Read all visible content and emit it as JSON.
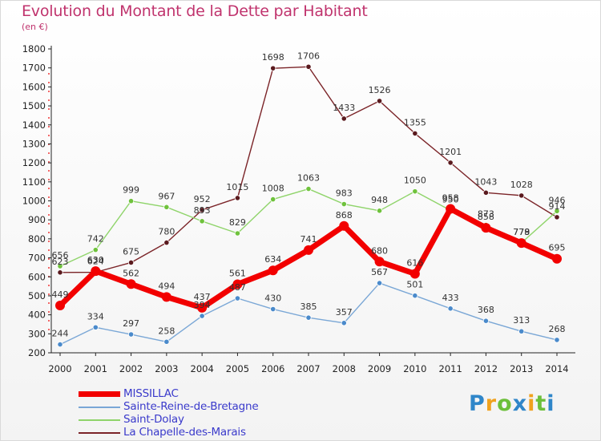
{
  "title": "Evolution du Montant de la Dette par Habitant",
  "subtitle": "(en €)",
  "brand": "Proxiti",
  "colors": {
    "title": "#c0336d",
    "legend_text": "#3a3acb"
  },
  "chart_data": {
    "type": "line",
    "x": [
      "2000",
      "2001",
      "2002",
      "2003",
      "2004",
      "2005",
      "2006",
      "2007",
      "2008",
      "2009",
      "2010",
      "2011",
      "2012",
      "2013",
      "2014"
    ],
    "ylim": [
      200,
      1800
    ],
    "yticks": [
      200,
      300,
      400,
      500,
      600,
      700,
      800,
      900,
      1000,
      1100,
      1200,
      1300,
      1400,
      1500,
      1600,
      1700,
      1800
    ],
    "grid": false,
    "legend_position": "bottom-left",
    "series": [
      {
        "name": "La Chapelle-des-Marais",
        "color": "#7b2428",
        "marker": "#5a1a1e",
        "width": 1.4,
        "values": [
          623,
          624,
          675,
          780,
          952,
          1015,
          1698,
          1706,
          1433,
          1526,
          1355,
          1201,
          1043,
          1028,
          914
        ],
        "labels": [
          "623",
          "624",
          "675",
          "780",
          "952",
          "1015",
          "1698",
          "1706",
          "1433",
          "1526",
          "1355",
          "1201",
          "1043",
          "1028",
          "914"
        ]
      },
      {
        "name": "Saint-Dolay",
        "color": "#8fd46a",
        "marker": "#6fc23c",
        "width": 1.4,
        "values": [
          656,
          742,
          999,
          967,
          893,
          829,
          1008,
          1063,
          983,
          948,
          1050,
          950,
          873,
          779,
          946
        ],
        "labels": [
          "656",
          "742",
          "999",
          "967",
          "893",
          "829",
          "1008",
          "1063",
          "983",
          "948",
          "1050",
          "950",
          "873",
          "779",
          "946"
        ]
      },
      {
        "name": "Sainte-Reine-de-Bretagne",
        "color": "#7aa7d6",
        "marker": "#4a8acb",
        "width": 1.4,
        "values": [
          244,
          334,
          297,
          258,
          394,
          487,
          430,
          385,
          357,
          567,
          501,
          433,
          368,
          313,
          268
        ],
        "labels": [
          "244",
          "334",
          "297",
          "258",
          "394",
          "487",
          "430",
          "385",
          "357",
          "567",
          "501",
          "433",
          "368",
          "313",
          "268"
        ]
      },
      {
        "name": "MISSILLAC",
        "color": "#f20000",
        "marker": "#f20000",
        "width": 7,
        "values": [
          449,
          630,
          562,
          494,
          437,
          561,
          634,
          741,
          868,
          680,
          616,
          958,
          858,
          778,
          695
        ],
        "labels": [
          "449",
          "630",
          "562",
          "494",
          "437",
          "561",
          "634",
          "741",
          "868",
          "680",
          "616",
          "958",
          "858",
          "778",
          "695"
        ]
      }
    ],
    "legend_order": [
      "MISSILLAC",
      "Sainte-Reine-de-Bretagne",
      "Saint-Dolay",
      "La Chapelle-des-Marais"
    ]
  }
}
